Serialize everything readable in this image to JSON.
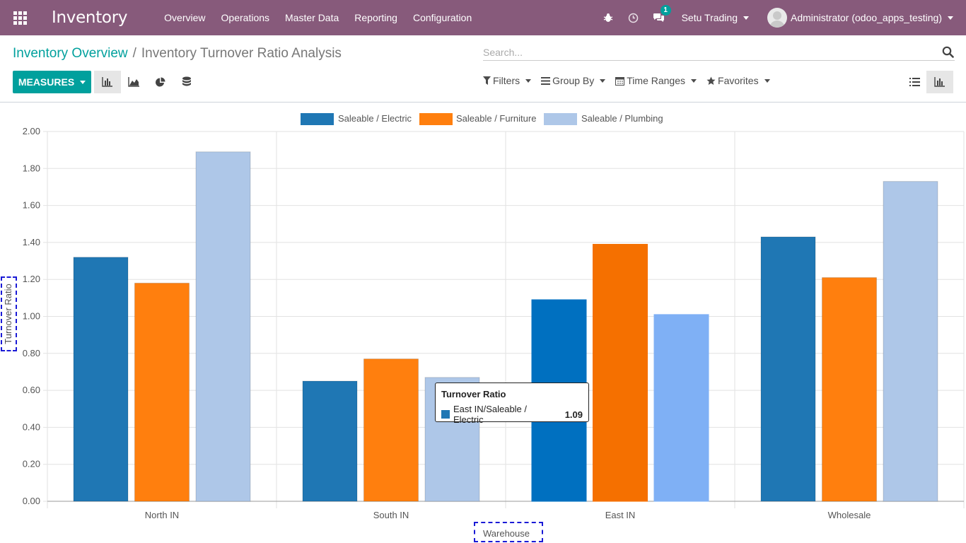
{
  "topbar": {
    "app_title": "Inventory",
    "menu": [
      "Overview",
      "Operations",
      "Master Data",
      "Reporting",
      "Configuration"
    ],
    "message_count": "1",
    "company": "Setu Trading",
    "user": "Administrator (odoo_apps_testing)"
  },
  "breadcrumb": {
    "parent": "Inventory Overview",
    "separator": "/",
    "current": "Inventory Turnover Ratio Analysis"
  },
  "search": {
    "placeholder": "Search..."
  },
  "toolbar": {
    "measures_label": "MEASURES",
    "filters_label": "Filters",
    "group_by_label": "Group By",
    "time_ranges_label": "Time Ranges",
    "favorites_label": "Favorites"
  },
  "chart_data": {
    "type": "bar",
    "categories": [
      "North IN",
      "South IN",
      "East IN",
      "Wholesale"
    ],
    "series": [
      {
        "name": "Saleable / Electric",
        "color": "#1f77b4",
        "values": [
          1.32,
          0.65,
          1.09,
          1.43
        ]
      },
      {
        "name": "Saleable / Furniture",
        "color": "#ff7f0e",
        "values": [
          1.18,
          0.77,
          1.39,
          1.21
        ]
      },
      {
        "name": "Saleable / Plumbing",
        "color": "#aec7e8",
        "values": [
          1.89,
          0.67,
          1.01,
          1.73
        ]
      }
    ],
    "highlight_category": "East IN",
    "highlight_colors": [
      "#0070c0",
      "#f57000",
      "#7fb0f5"
    ],
    "xlabel": "Warehouse",
    "ylabel": "Turnover Ratio",
    "ylim": [
      0,
      2
    ],
    "yticks": [
      "0.00",
      "0.20",
      "0.40",
      "0.60",
      "0.80",
      "1.00",
      "1.20",
      "1.40",
      "1.60",
      "1.80",
      "2.00"
    ],
    "grid": true,
    "legend_position": "top-center"
  },
  "tooltip": {
    "title": "Turnover Ratio",
    "label": "East IN/Saleable / Electric",
    "value": "1.09",
    "color": "#1f77b4"
  }
}
